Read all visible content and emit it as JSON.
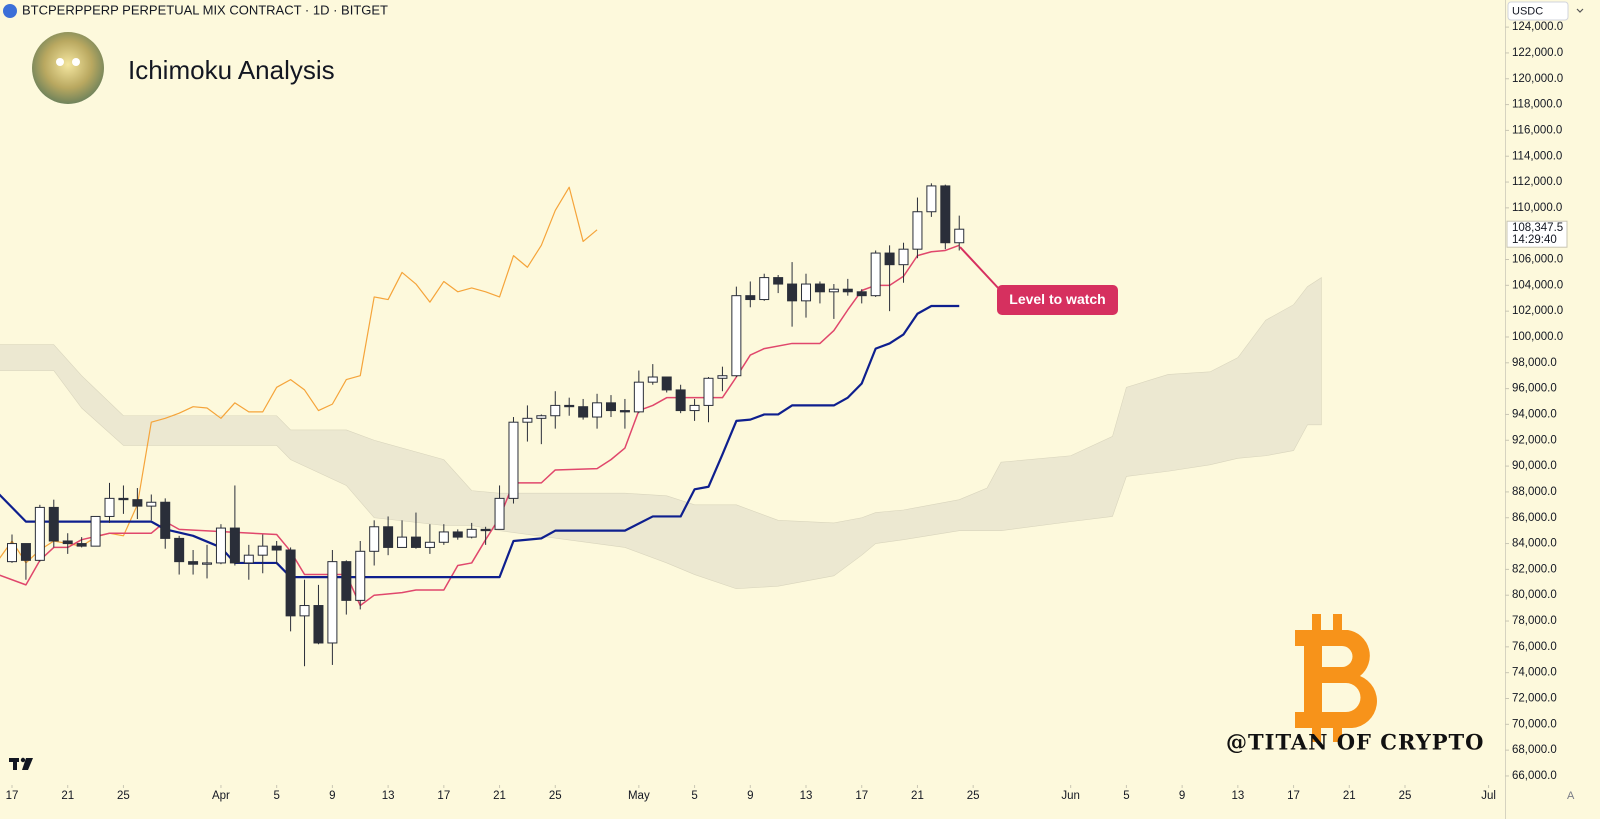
{
  "chart_data": {
    "type": "candlestick",
    "symbol": "BTCPERPPERP PERPETUAL MIX CONTRACT · 1D · BITGET",
    "title": "Ichimoku Analysis",
    "currency": "USDC",
    "annotation": "Level to watch",
    "watermark": "@TITAN OF CRYPTO",
    "scale_button": "A",
    "up_color": "#ffffff",
    "down_color": "#2a2e39",
    "ylim": [
      65300,
      126100
    ],
    "yticks": [
      {
        "value": 66000,
        "label": "66,000.0"
      },
      {
        "value": 68000,
        "label": "68,000.0"
      },
      {
        "value": 70000,
        "label": "70,000.0"
      },
      {
        "value": 72000,
        "label": "72,000.0"
      },
      {
        "value": 74000,
        "label": "74,000.0"
      },
      {
        "value": 76000,
        "label": "76,000.0"
      },
      {
        "value": 78000,
        "label": "78,000.0"
      },
      {
        "value": 80000,
        "label": "80,000.0"
      },
      {
        "value": 82000,
        "label": "82,000.0"
      },
      {
        "value": 84000,
        "label": "84,000.0"
      },
      {
        "value": 86000,
        "label": "86,000.0"
      },
      {
        "value": 88000,
        "label": "88,000.0"
      },
      {
        "value": 90000,
        "label": "90,000.0"
      },
      {
        "value": 92000,
        "label": "92,000.0"
      },
      {
        "value": 94000,
        "label": "94,000.0"
      },
      {
        "value": 96000,
        "label": "96,000.0"
      },
      {
        "value": 98000,
        "label": "98,000.0"
      },
      {
        "value": 100000,
        "label": "100,000.0"
      },
      {
        "value": 102000,
        "label": "102,000.0"
      },
      {
        "value": 104000,
        "label": "104,000.0"
      },
      {
        "value": 106000,
        "label": "106,000.0"
      },
      {
        "value": 110000,
        "label": "110,000.0"
      },
      {
        "value": 112000,
        "label": "112,000.0"
      },
      {
        "value": 114000,
        "label": "114,000.0"
      },
      {
        "value": 116000,
        "label": "116,000.0"
      },
      {
        "value": 118000,
        "label": "118,000.0"
      },
      {
        "value": 120000,
        "label": "120,000.0"
      },
      {
        "value": 122000,
        "label": "122,000.0"
      },
      {
        "value": 124000,
        "label": "124,000.0"
      }
    ],
    "last_price": {
      "value": 108347.5,
      "label": "108,347.5"
    },
    "countdown": "14:29:40",
    "last_price_color": "#ffffff",
    "xticks": [
      {
        "value": "Mar 17",
        "label": "17"
      },
      {
        "value": "Mar 21",
        "label": "21"
      },
      {
        "value": "Mar 25",
        "label": "25"
      },
      {
        "value": "Apr 1",
        "label": "Apr"
      },
      {
        "value": "Apr 5",
        "label": "5"
      },
      {
        "value": "Apr 9",
        "label": "9"
      },
      {
        "value": "Apr 13",
        "label": "13"
      },
      {
        "value": "Apr 17",
        "label": "17"
      },
      {
        "value": "Apr 21",
        "label": "21"
      },
      {
        "value": "Apr 25",
        "label": "25"
      },
      {
        "value": "May 1",
        "label": "May"
      },
      {
        "value": "May 5",
        "label": "5"
      },
      {
        "value": "May 9",
        "label": "9"
      },
      {
        "value": "May 13",
        "label": "13"
      },
      {
        "value": "May 17",
        "label": "17"
      },
      {
        "value": "May 21",
        "label": "21"
      },
      {
        "value": "May 25",
        "label": "25"
      },
      {
        "value": "Jun 1",
        "label": "Jun"
      },
      {
        "value": "Jun 5",
        "label": "5"
      },
      {
        "value": "Jun 9",
        "label": "9"
      },
      {
        "value": "Jun 13",
        "label": "13"
      },
      {
        "value": "Jun 17",
        "label": "17"
      },
      {
        "value": "Jun 21",
        "label": "21"
      },
      {
        "value": "Jun 25",
        "label": "25"
      },
      {
        "value": "Jul 1",
        "label": "Jul"
      }
    ],
    "candles": {
      "x": [
        "Mar 17",
        "Mar 18",
        "Mar 19",
        "Mar 20",
        "Mar 21",
        "Mar 22",
        "Mar 23",
        "Mar 24",
        "Mar 25",
        "Mar 26",
        "Mar 27",
        "Mar 28",
        "Mar 29",
        "Mar 30",
        "Mar 31",
        "Apr 1",
        "Apr 2",
        "Apr 3",
        "Apr 4",
        "Apr 5",
        "Apr 6",
        "Apr 7",
        "Apr 8",
        "Apr 9",
        "Apr 10",
        "Apr 11",
        "Apr 12",
        "Apr 13",
        "Apr 14",
        "Apr 15",
        "Apr 16",
        "Apr 17",
        "Apr 18",
        "Apr 19",
        "Apr 20",
        "Apr 21",
        "Apr 22",
        "Apr 23",
        "Apr 24",
        "Apr 25",
        "Apr 26",
        "Apr 27",
        "Apr 28",
        "Apr 29",
        "Apr 30",
        "May 1",
        "May 2",
        "May 3",
        "May 4",
        "May 5",
        "May 6",
        "May 7",
        "May 8",
        "May 9",
        "May 10",
        "May 11",
        "May 12",
        "May 13",
        "May 14",
        "May 15",
        "May 16",
        "May 17",
        "May 18",
        "May 19",
        "May 20",
        "May 21",
        "May 22",
        "May 23",
        "May 24"
      ],
      "open": [
        82600,
        84000,
        82700,
        86800,
        84200,
        84000,
        83800,
        86100,
        87500,
        87400,
        86900,
        87200,
        84400,
        82600,
        82400,
        82500,
        85200,
        82500,
        83100,
        83800,
        83500,
        78400,
        79200,
        76300,
        82600,
        79600,
        83400,
        85300,
        83700,
        84500,
        83700,
        84100,
        84900,
        84500,
        85100,
        85100,
        87500,
        93400,
        93700,
        93900,
        94700,
        94600,
        93800,
        94900,
        94300,
        94200,
        96500,
        96900,
        95900,
        94300,
        94700,
        96800,
        97000,
        103200,
        102900,
        104600,
        104100,
        102800,
        104100,
        103500,
        103700,
        103500,
        103200,
        106500,
        105600,
        106800,
        109700,
        111700,
        107300
      ],
      "high": [
        84700,
        84000,
        87000,
        87400,
        84800,
        84500,
        86100,
        88700,
        88500,
        88300,
        87800,
        87500,
        84600,
        83500,
        83900,
        85500,
        88500,
        83900,
        84700,
        84200,
        83700,
        81200,
        80800,
        83500,
        82700,
        84200,
        85800,
        86100,
        85800,
        86400,
        85500,
        85500,
        85100,
        85600,
        85300,
        88500,
        93800,
        94700,
        94000,
        95800,
        95300,
        95200,
        95600,
        95500,
        95200,
        97400,
        97900,
        96900,
        96300,
        95200,
        96900,
        97700,
        103900,
        104300,
        104900,
        104800,
        105800,
        104900,
        104300,
        104100,
        104500,
        103700,
        106700,
        107100,
        107300,
        110800,
        111900,
        111800,
        109400
      ],
      "low": [
        82500,
        81200,
        82600,
        83700,
        83200,
        83700,
        83800,
        85600,
        86300,
        85900,
        85800,
        83600,
        81600,
        81600,
        81300,
        82400,
        82300,
        81200,
        81700,
        82400,
        77200,
        74500,
        76200,
        74600,
        78500,
        78900,
        82300,
        83100,
        83700,
        83600,
        83200,
        83900,
        84300,
        84400,
        83900,
        85100,
        87100,
        91900,
        91700,
        92900,
        93900,
        93600,
        92900,
        93800,
        92900,
        94100,
        96300,
        95700,
        94100,
        93500,
        93400,
        95800,
        96900,
        102300,
        102800,
        103400,
        100800,
        101500,
        102600,
        101400,
        103200,
        102600,
        103100,
        102000,
        104200,
        106100,
        109300,
        106800,
        106700
      ],
      "close": [
        84000,
        82700,
        86800,
        84200,
        84000,
        83800,
        86100,
        87500,
        87400,
        86900,
        87200,
        84400,
        82600,
        82400,
        82500,
        85200,
        82500,
        83100,
        83800,
        83500,
        78400,
        79200,
        76300,
        82600,
        79600,
        83400,
        85300,
        83700,
        84500,
        83700,
        84100,
        84900,
        84500,
        85100,
        85000,
        87500,
        93400,
        93700,
        93900,
        94700,
        94600,
        93800,
        94900,
        94300,
        94200,
        96500,
        96900,
        95900,
        94300,
        94700,
        96800,
        97000,
        103200,
        102900,
        104600,
        104100,
        102800,
        104100,
        103500,
        103700,
        103500,
        103200,
        106500,
        105600,
        106800,
        109700,
        111700,
        107300,
        108347.5
      ]
    },
    "cloud": {
      "color": "#e6e2cd",
      "x": [
        "Mar 16",
        "Mar 20",
        "Mar 22",
        "Mar 25",
        "Apr 5",
        "Apr 6",
        "Apr 10",
        "Apr 12",
        "Apr 17",
        "Apr 19",
        "Apr 21",
        "Apr 30",
        "May 3",
        "May 5",
        "May 8",
        "May 11",
        "May 15",
        "May 17",
        "May 18",
        "May 20",
        "May 24",
        "May 26",
        "May 27",
        "Jun 1",
        "Jun 4",
        "Jun 5",
        "Jun 8",
        "Jun 11",
        "Jun 13",
        "Jun 15",
        "Jun 17",
        "Jun 18",
        "Jun 19"
      ],
      "upper": [
        99400,
        99400,
        97000,
        93900,
        93900,
        92800,
        92800,
        92000,
        90500,
        88100,
        87900,
        87900,
        87700,
        87000,
        87000,
        85800,
        85600,
        86000,
        86400,
        86600,
        87400,
        88300,
        90300,
        90800,
        92300,
        96100,
        97100,
        97300,
        98400,
        101300,
        102500,
        103900,
        104600
      ],
      "lower": [
        97400,
        97400,
        94500,
        91600,
        91600,
        90500,
        88500,
        86000,
        85400,
        85400,
        85000,
        83700,
        82500,
        81600,
        80500,
        80700,
        81500,
        83100,
        84000,
        84300,
        85000,
        85000,
        85000,
        85700,
        86100,
        89200,
        89600,
        90100,
        90600,
        90800,
        91200,
        93200,
        93200
      ]
    },
    "lines": [
      {
        "color": "#f5a43a",
        "width": 1.2,
        "x": [
          "Mar 16",
          "Mar 17",
          "Mar 18",
          "Mar 19",
          "Mar 20",
          "Mar 21",
          "Mar 22",
          "Mar 23",
          "Mar 24",
          "Mar 25",
          "Mar 26",
          "Mar 27",
          "Mar 28",
          "Mar 29",
          "Mar 30",
          "Mar 31",
          "Apr 1",
          "Apr 2",
          "Apr 3",
          "Apr 4",
          "Apr 5",
          "Apr 6",
          "Apr 7",
          "Apr 8",
          "Apr 9",
          "Apr 10",
          "Apr 11",
          "Apr 12",
          "Apr 13",
          "Apr 14",
          "Apr 15",
          "Apr 16",
          "Apr 17",
          "Apr 18",
          "Apr 19",
          "Apr 20",
          "Apr 21",
          "Apr 22",
          "Apr 23",
          "Apr 24",
          "Apr 25",
          "Apr 26",
          "Apr 27",
          "Apr 28"
        ],
        "values": [
          82700,
          84200,
          82500,
          83500,
          84200,
          84000,
          83800,
          84500,
          84800,
          84600,
          87000,
          93400,
          93700,
          94100,
          94600,
          94500,
          93700,
          94900,
          94200,
          94200,
          96100,
          96700,
          95900,
          94300,
          94800,
          96700,
          97000,
          103100,
          102900,
          105000,
          104100,
          102700,
          104300,
          103500,
          103800,
          103500,
          103100,
          106300,
          105400,
          107100,
          109800,
          111600,
          107400,
          108300
        ]
      },
      {
        "color": "#e0476c",
        "width": 1.5,
        "x": [
          "Mar 16",
          "Mar 18",
          "Mar 19",
          "Mar 20",
          "Mar 21",
          "Mar 22",
          "Mar 24",
          "Mar 27",
          "Mar 28",
          "Mar 29",
          "Apr 5",
          "Apr 6",
          "Apr 7",
          "Apr 10",
          "Apr 11",
          "Apr 12",
          "Apr 14",
          "Apr 15",
          "Apr 17",
          "Apr 18",
          "Apr 19",
          "Apr 20",
          "Apr 21",
          "Apr 22",
          "Apr 24",
          "Apr 25",
          "Apr 28",
          "Apr 29",
          "Apr 30",
          "May 1",
          "May 2",
          "May 3",
          "May 7",
          "May 8",
          "May 9",
          "May 10",
          "May 12",
          "May 14",
          "May 15",
          "May 16",
          "May 17",
          "May 18",
          "May 19",
          "May 20",
          "May 21",
          "May 22",
          "May 23",
          "May 24"
        ],
        "values": [
          81600,
          80800,
          82700,
          83700,
          83700,
          84300,
          84800,
          84800,
          85700,
          85100,
          84700,
          83400,
          81600,
          81600,
          79200,
          80000,
          80200,
          80400,
          80400,
          82300,
          82500,
          84300,
          86000,
          88700,
          88700,
          89700,
          89800,
          90500,
          91400,
          94300,
          94700,
          95300,
          95300,
          96900,
          98600,
          99100,
          99500,
          99500,
          100500,
          102100,
          103600,
          104000,
          104000,
          104700,
          106300,
          106600,
          106700,
          107100
        ]
      },
      {
        "color": "#0e1f8e",
        "width": 2.2,
        "x": [
          "Mar 16",
          "Mar 18",
          "Mar 27",
          "Mar 28",
          "Mar 30",
          "Apr 1",
          "Apr 2",
          "Apr 5",
          "Apr 6",
          "Apr 21",
          "Apr 22",
          "Apr 24",
          "Apr 25",
          "Apr 30",
          "May 2",
          "May 4",
          "May 5",
          "May 6",
          "May 7",
          "May 8",
          "May 9",
          "May 10",
          "May 11",
          "May 12",
          "May 15",
          "May 16",
          "May 17",
          "May 18",
          "May 19",
          "May 20",
          "May 21",
          "May 22",
          "May 24"
        ],
        "values": [
          87900,
          85700,
          85700,
          85100,
          84600,
          83700,
          82500,
          82500,
          81400,
          81400,
          84200,
          84400,
          85000,
          85000,
          86100,
          86100,
          88200,
          88400,
          90900,
          93500,
          93600,
          94000,
          94000,
          94700,
          94700,
          95300,
          96400,
          99100,
          99500,
          100200,
          101800,
          102400,
          102400
        ]
      }
    ]
  }
}
